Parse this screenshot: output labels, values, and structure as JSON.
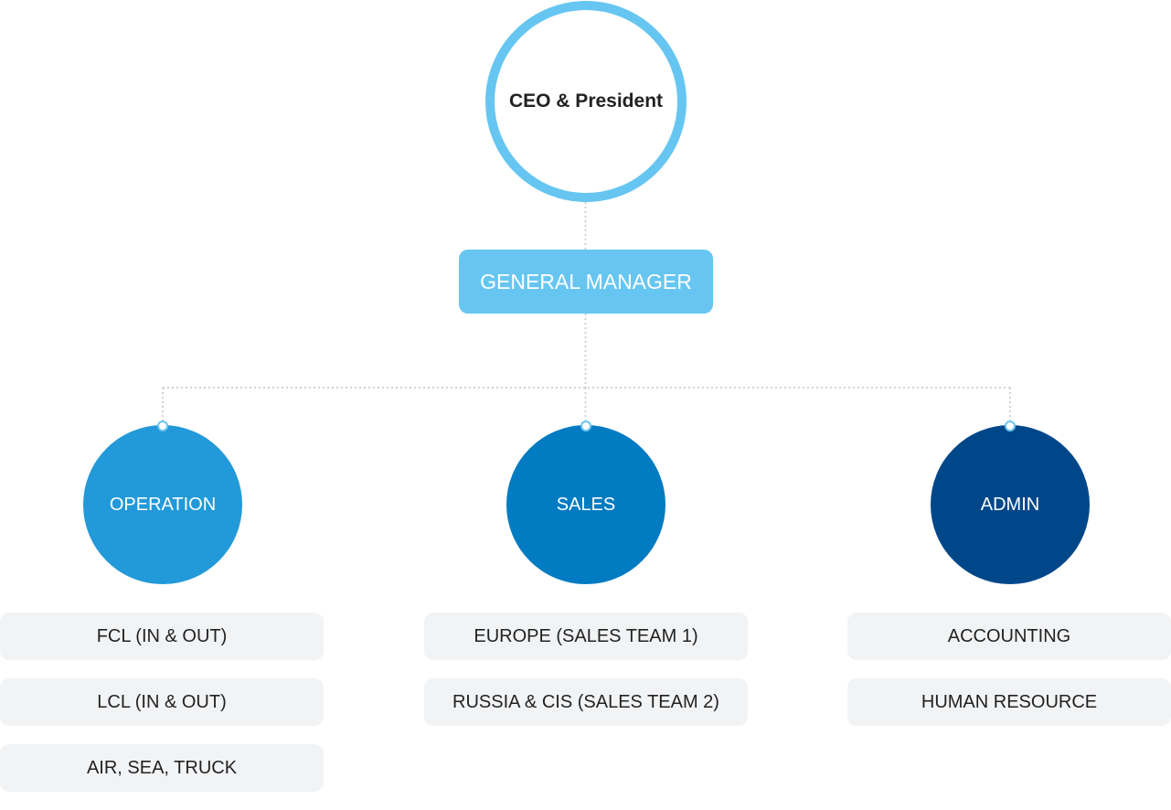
{
  "ceo": {
    "label": "CEO & President"
  },
  "general_manager": {
    "label": "GENERAL MANAGER"
  },
  "departments": [
    {
      "label": "OPERATION",
      "color": "#2299d8",
      "items": [
        "FCL (IN & OUT)",
        "LCL (IN & OUT)",
        "AIR, SEA, TRUCK"
      ]
    },
    {
      "label": "SALES",
      "color": "#017bc1",
      "items": [
        "EUROPE (SALES TEAM 1)",
        "RUSSIA & CIS (SALES TEAM 2)"
      ]
    },
    {
      "label": "ADMIN",
      "color": "#00478a",
      "items": [
        "ACCOUNTING",
        "HUMAN RESOURCE"
      ]
    }
  ],
  "colors": {
    "accent": "#66c6f1",
    "connector": "#cfd3d8",
    "item_background": "#f2f3f5"
  }
}
